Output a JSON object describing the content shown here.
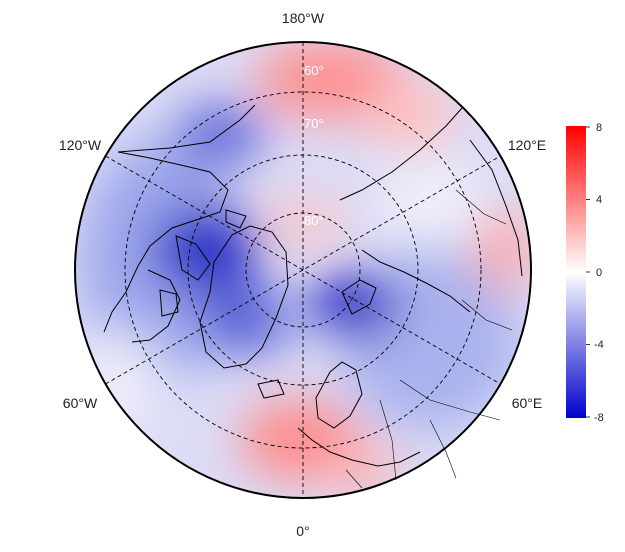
{
  "map": {
    "projection": "north-polar-stereographic",
    "longitude_labels": {
      "top": "180°W",
      "upper_left": "120°W",
      "upper_right": "120°E",
      "lower_left": "60°W",
      "lower_right": "60°E",
      "bottom": "0°"
    },
    "latitude_labels": [
      "60°",
      "70°",
      "80°"
    ],
    "graticule_style": "dashed",
    "features": [
      "coastlines",
      "country-borders"
    ]
  },
  "colorbar": {
    "ticks": [
      "8",
      "4",
      "0",
      "-4",
      "-8"
    ],
    "range": [
      -8,
      8
    ],
    "colors": {
      "high": "#ff0000",
      "mid": "#ffffff",
      "low": "#0000cc"
    }
  },
  "field": {
    "anomalies": [
      {
        "label": "north-pacific-positive",
        "value": 3.5
      },
      {
        "label": "central-arctic-positive",
        "value": 2.5
      },
      {
        "label": "canadian-archipelago-negative",
        "value": -5.5
      },
      {
        "label": "greenland-negative",
        "value": -4.0
      },
      {
        "label": "barents-kara-negative",
        "value": -7.0
      },
      {
        "label": "north-atlantic-europe-positive",
        "value": 3.5
      },
      {
        "label": "siberia-positive",
        "value": 2.5
      },
      {
        "label": "alaska-negative",
        "value": -3.5
      }
    ]
  }
}
